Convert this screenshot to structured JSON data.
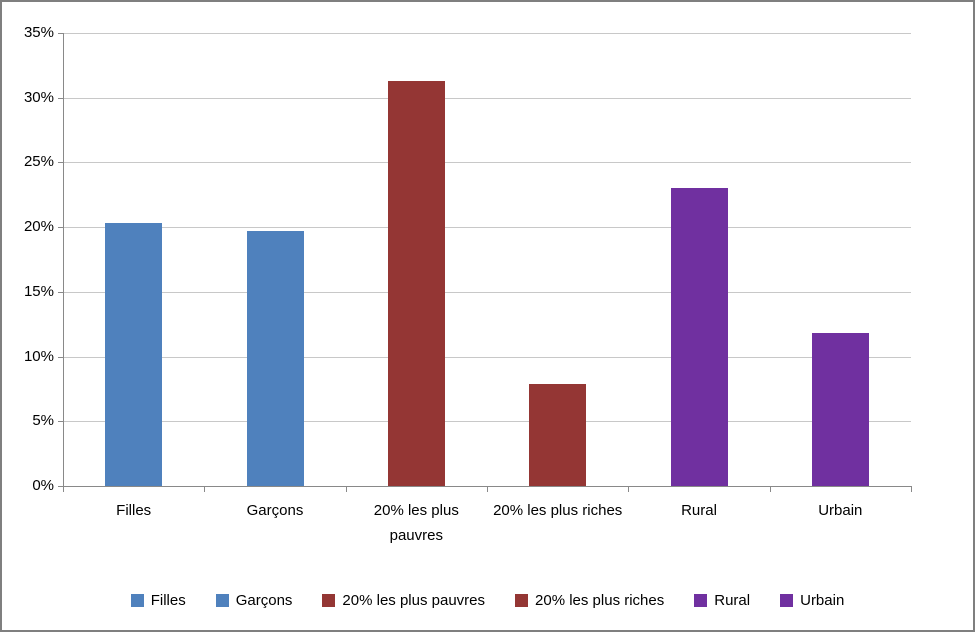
{
  "chart_data": {
    "type": "bar",
    "title": "",
    "xlabel": "",
    "ylabel": "",
    "categories": [
      "Filles",
      "Garçons",
      "20% les plus pauvres",
      "20% les plus riches",
      "Rural",
      "Urbain"
    ],
    "values": [
      20.3,
      19.7,
      31.3,
      7.9,
      23.0,
      11.8
    ],
    "bar_colors": [
      "#4F81BD",
      "#4F81BD",
      "#943634",
      "#943634",
      "#7030A0",
      "#7030A0"
    ],
    "y_ticks": [
      "0%",
      "5%",
      "10%",
      "15%",
      "20%",
      "25%",
      "30%",
      "35%"
    ],
    "ylim": [
      0,
      35
    ],
    "y_step": 5,
    "grid": true,
    "legend_position": "bottom",
    "legend": [
      {
        "label": "Filles",
        "color": "#4F81BD"
      },
      {
        "label": "Garçons",
        "color": "#4F81BD"
      },
      {
        "label": "20% les plus pauvres",
        "color": "#943634"
      },
      {
        "label": "20% les plus riches",
        "color": "#943634"
      },
      {
        "label": "Rural",
        "color": "#7030A0"
      },
      {
        "label": "Urbain",
        "color": "#7030A0"
      }
    ],
    "colors": {
      "gridline": "#C8C8C8",
      "axis": "#898989",
      "text": "#000000",
      "border": "#7F7F7F",
      "background": "#FFFFFF"
    }
  }
}
